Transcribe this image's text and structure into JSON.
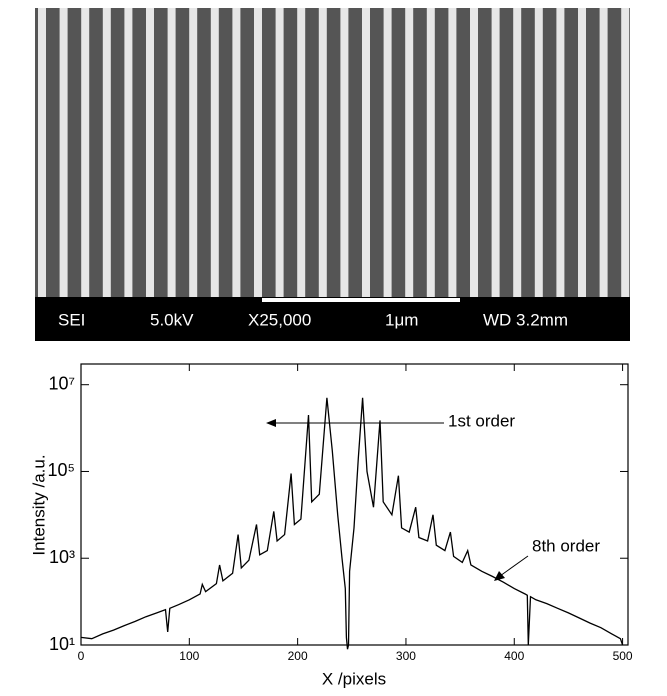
{
  "sem_image": {
    "labels": [
      "SEI",
      "5.0kV",
      "X25,000",
      "1μm",
      "WD 3.2mm"
    ]
  },
  "chart_data": {
    "type": "line",
    "yscale": "log",
    "color": "#000000",
    "ylabel": "Intensity /a.u.",
    "xlabel": "X /pixels",
    "annotations": [
      "1st order",
      "8th order"
    ],
    "xlim": [
      0,
      505
    ],
    "xticks": [
      0,
      100,
      200,
      300,
      400,
      500
    ],
    "ylim": [
      10,
      30000000
    ],
    "yticks": [
      {
        "value": 10,
        "label": "10¹"
      },
      {
        "value": 1000,
        "label": "10³"
      },
      {
        "value": 100000,
        "label": "10⁵"
      },
      {
        "value": 10000000,
        "label": "10⁷"
      }
    ],
    "x": [
      0,
      10,
      20,
      30,
      40,
      50,
      60,
      70,
      78,
      80,
      82,
      90,
      100,
      110,
      112,
      115,
      125,
      128,
      131,
      140,
      145,
      148,
      155,
      162,
      165,
      172,
      178,
      181,
      188,
      194,
      197,
      203,
      210,
      213,
      220,
      227,
      232,
      237,
      241,
      244,
      245,
      246,
      247,
      248,
      252,
      256,
      260,
      264,
      270,
      276,
      279,
      287,
      293,
      296,
      303,
      309,
      312,
      320,
      325,
      328,
      336,
      341,
      344,
      352,
      357,
      360,
      370,
      380,
      390,
      400,
      410,
      412,
      413,
      415,
      420,
      430,
      440,
      450,
      460,
      470,
      480,
      490,
      498,
      500
    ],
    "values": [
      15,
      14,
      18,
      22,
      28,
      35,
      45,
      55,
      65,
      20,
      70,
      85,
      110,
      150,
      250,
      170,
      260,
      700,
      300,
      450,
      3500,
      600,
      900,
      6000,
      1200,
      1500,
      12000,
      2500,
      3500,
      90000,
      6000,
      8000,
      2000000,
      20000,
      30000,
      5000000,
      300000,
      10000,
      1000,
      200,
      15,
      8,
      10,
      500,
      5000,
      200000,
      5000000,
      100000,
      15000,
      1500000,
      20000,
      10000,
      80000,
      5000,
      4000,
      15000,
      3000,
      2500,
      10000,
      2000,
      1500,
      4000,
      1100,
      800,
      1500,
      700,
      500,
      380,
      280,
      200,
      150,
      140,
      10,
      130,
      110,
      90,
      70,
      55,
      42,
      32,
      25,
      18,
      14,
      10
    ]
  }
}
